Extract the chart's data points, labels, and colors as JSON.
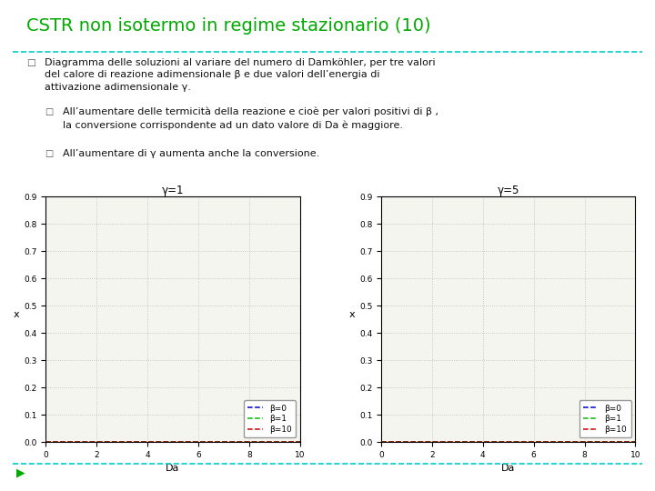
{
  "title": "CSTR non isotermo in regime stazionario (10)",
  "title_color": "#00AA00",
  "plot1_title": "γ=1",
  "plot2_title": "γ=5",
  "xlabel": "Da",
  "ylabel": "x",
  "ytick_labels": [
    "0",
    "0.1",
    "0.2",
    "0.3",
    "0.4",
    "0.5",
    "0.6",
    "0.7",
    "0.8",
    "0.9"
  ],
  "ytick_vals": [
    0,
    0.1,
    0.2,
    0.3,
    0.4,
    0.5,
    0.6,
    0.7,
    0.8,
    0.9
  ],
  "xtick_vals": [
    0,
    2,
    4,
    6,
    8,
    10
  ],
  "beta_values": [
    0,
    1,
    10
  ],
  "gamma_values": [
    1,
    5
  ],
  "line_colors": [
    "#0000CC",
    "#00BB00",
    "#CC0000"
  ],
  "legend_labels": [
    "β=0",
    "β=1",
    "β=10"
  ],
  "fig_bg": "#FFFFFF",
  "plot_bg": "#F5F5F0",
  "separator_color": "#00CCCC",
  "bullet_marker_color": "#555555",
  "bottom_arrow_color": "#00AA00",
  "text_color": "#111111"
}
